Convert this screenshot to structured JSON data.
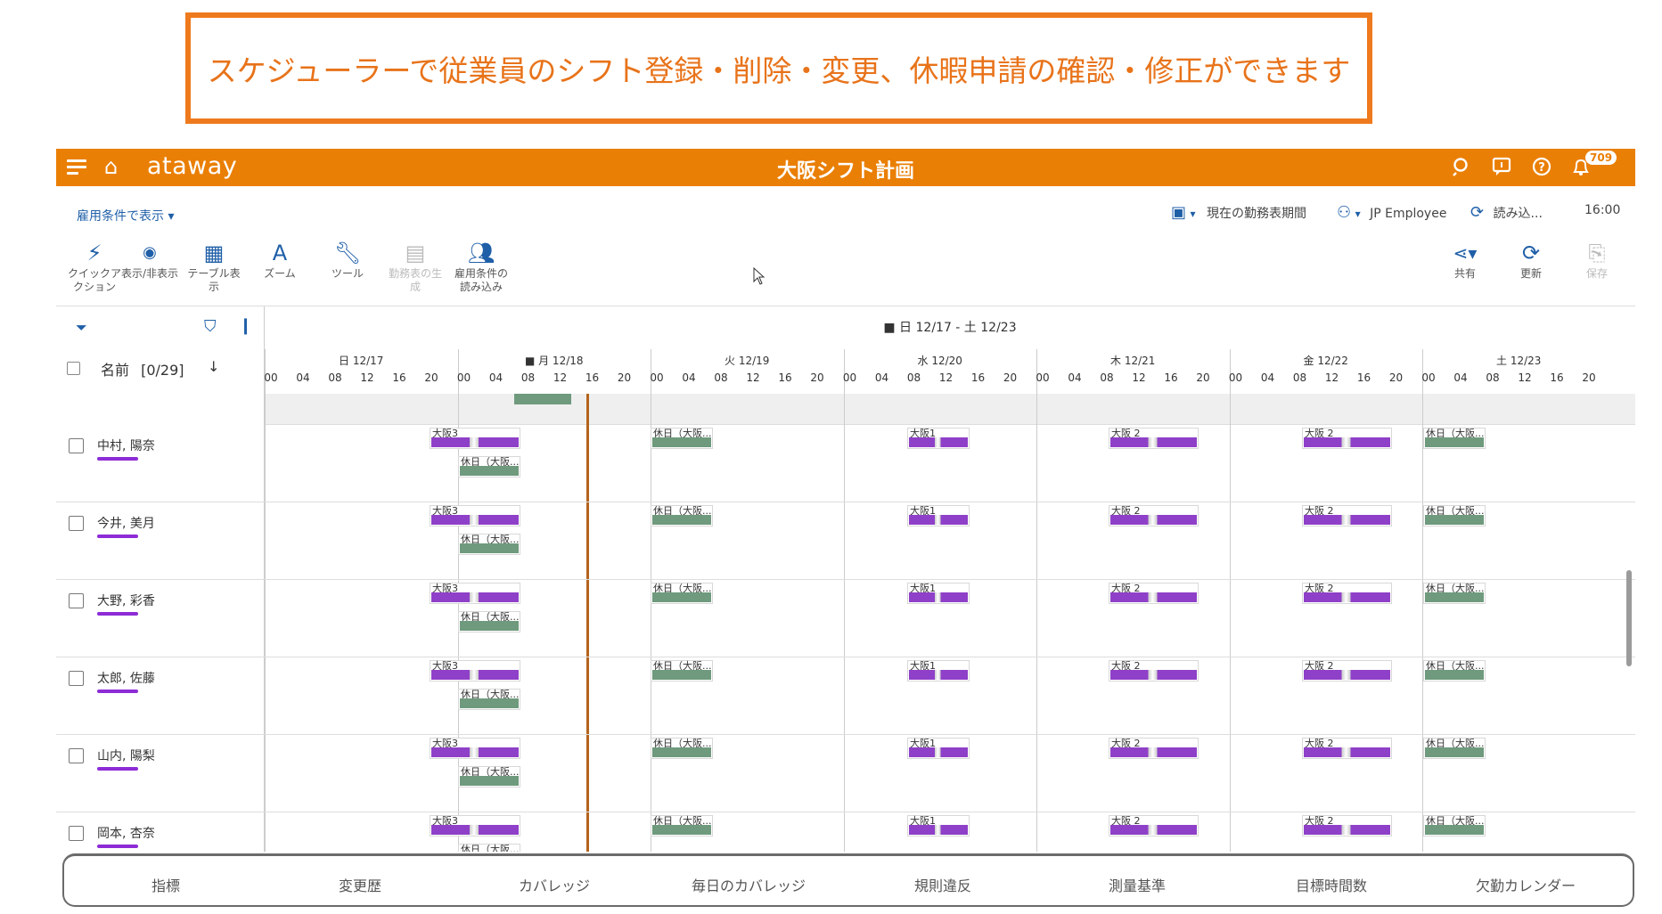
{
  "banner": {
    "text": "スケジューラーで従業員のシフト登録・削除・変更、休暇申請の確認・修正ができます"
  },
  "appbar": {
    "brand": "ataway",
    "title": "大阪シフト計画",
    "notification_count": "709"
  },
  "toolbar": {
    "view_selector": "雇用条件で表示",
    "period_label": "現在の勤務表期間",
    "group_label": "JP Employee",
    "reload_label": "読み込...",
    "time": "16:00",
    "tools": [
      {
        "label": "クイックア\nクション",
        "icon": "lightning-icon"
      },
      {
        "label": "表示/非表示",
        "icon": "eye-icon"
      },
      {
        "label": "テーブル表\n示",
        "icon": "table-icon"
      },
      {
        "label": "ズーム",
        "icon": "font-size-icon"
      },
      {
        "label": "ツール",
        "icon": "wrench-icon"
      },
      {
        "label": "勤務表の生\n成",
        "icon": "calendar-generate-icon"
      },
      {
        "label": "雇用条件の\n読み込み",
        "icon": "users-download-icon"
      }
    ],
    "right_tools": [
      {
        "label": "共有",
        "icon": "share-icon"
      },
      {
        "label": "更新",
        "icon": "refresh-icon"
      },
      {
        "label": "保存",
        "icon": "save-icon"
      }
    ]
  },
  "grid": {
    "week_label": "■ 日 12/17 - 土 12/23",
    "name_header": "名前",
    "selection_count": "[0/29]",
    "days": [
      "日 12/17",
      "■ 月 12/18",
      "火 12/19",
      "水 12/20",
      "木 12/21",
      "金 12/22",
      "土 12/23"
    ],
    "hours": [
      "00",
      "04",
      "08",
      "12",
      "16",
      "20"
    ],
    "employees": [
      {
        "name": "中村, 陽奈"
      },
      {
        "name": "今井, 美月"
      },
      {
        "name": "大野, 彩香"
      },
      {
        "name": "太郎, 佐藤"
      },
      {
        "name": "山内, 陽梨"
      },
      {
        "name": "岡本, 杏奈"
      }
    ],
    "shift_labels": {
      "osaka3": "大阪3",
      "osaka1": "大阪1",
      "osaka2": "大阪 2",
      "holiday": "休日（大阪..."
    }
  },
  "tabs": [
    "指標",
    "変更歴",
    "カバレッジ",
    "毎日のカバレッジ",
    "規則違反",
    "測量基準",
    "目標時間数",
    "欠勤カレンダー"
  ],
  "colors": {
    "accent": "#ea7f05",
    "shift_purple": "#8f40c8",
    "holiday_green": "#6f9a7d",
    "link_blue": "#1f5fa8"
  }
}
